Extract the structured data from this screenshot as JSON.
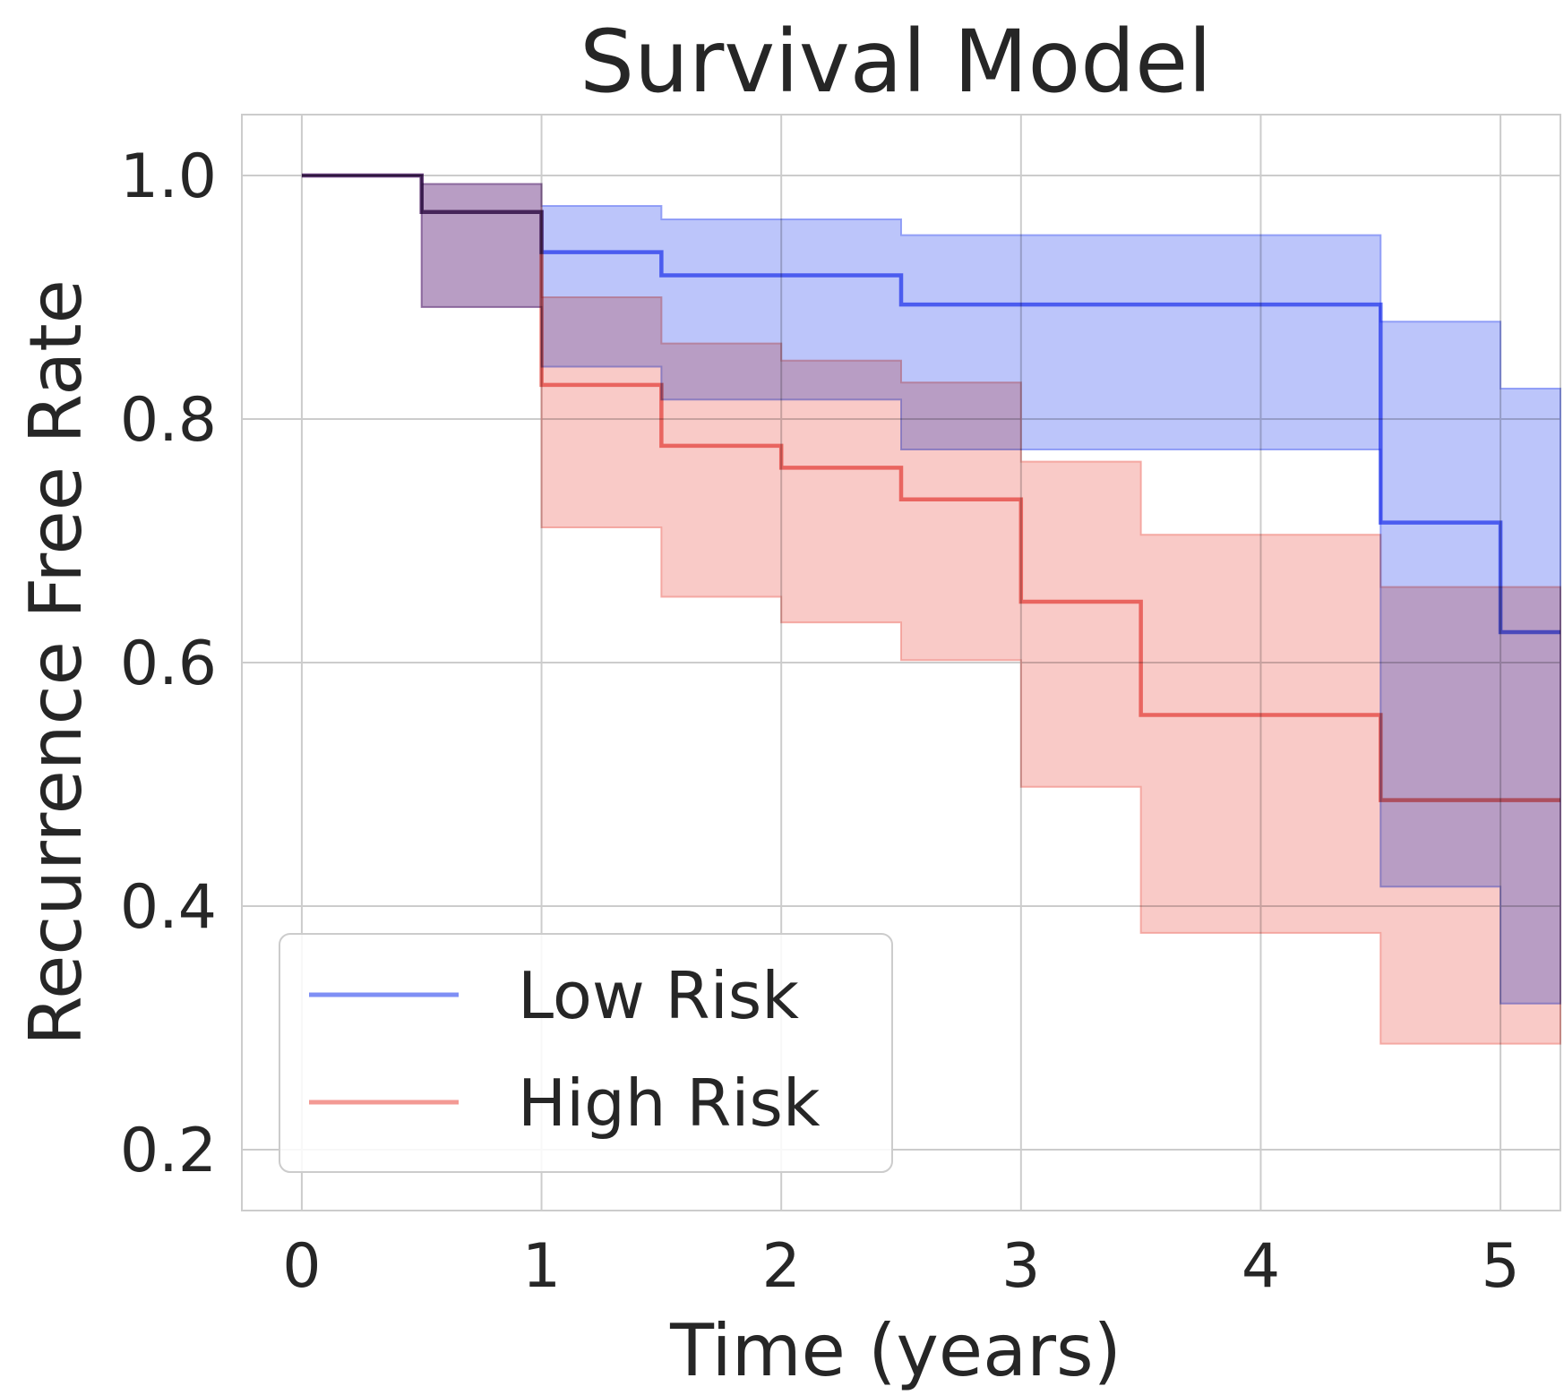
{
  "chart_data": {
    "type": "line",
    "title": "Survival Model",
    "xlabel": "Time (years)",
    "ylabel": "Recurrence Free Rate",
    "xlim": [
      -0.25,
      5.25
    ],
    "ylim": [
      0.15,
      1.05
    ],
    "xticks": [
      0,
      1,
      2,
      3,
      4,
      5
    ],
    "xtick_labels": [
      "0",
      "1",
      "2",
      "3",
      "4",
      "5"
    ],
    "yticks": [
      0.2,
      0.4,
      0.6,
      0.8,
      1.0
    ],
    "ytick_labels": [
      "0.2",
      "0.4",
      "0.6",
      "0.8",
      "1.0"
    ],
    "grid": true,
    "legend_position": "lower-left",
    "series": [
      {
        "name": "Low Risk",
        "color": "#4b5ff2",
        "band_color": "#7f8ff5",
        "x": [
          0,
          0.5,
          1,
          1.5,
          2.5,
          4.5,
          5,
          5.25
        ],
        "y": [
          1.0,
          0.97,
          0.937,
          0.918,
          0.894,
          0.715,
          0.625,
          0.625
        ],
        "ci_upper": [
          1.0,
          0.993,
          0.975,
          0.964,
          0.951,
          0.88,
          0.825,
          0.825
        ],
        "ci_lower": [
          1.0,
          0.892,
          0.843,
          0.816,
          0.775,
          0.416,
          0.32,
          0.32
        ]
      },
      {
        "name": "High Risk",
        "color": "#ec6a64",
        "band_color": "#f39a94",
        "x": [
          0,
          0.5,
          1,
          1.5,
          2,
          2.5,
          3,
          3.5,
          4.5,
          5.25
        ],
        "y": [
          1.0,
          0.97,
          0.828,
          0.778,
          0.76,
          0.734,
          0.65,
          0.557,
          0.487,
          0.487
        ],
        "ci_upper": [
          1.0,
          0.993,
          0.9,
          0.862,
          0.848,
          0.83,
          0.765,
          0.705,
          0.662,
          0.662
        ],
        "ci_lower": [
          1.0,
          0.892,
          0.711,
          0.654,
          0.633,
          0.602,
          0.498,
          0.378,
          0.287,
          0.287
        ]
      }
    ]
  }
}
